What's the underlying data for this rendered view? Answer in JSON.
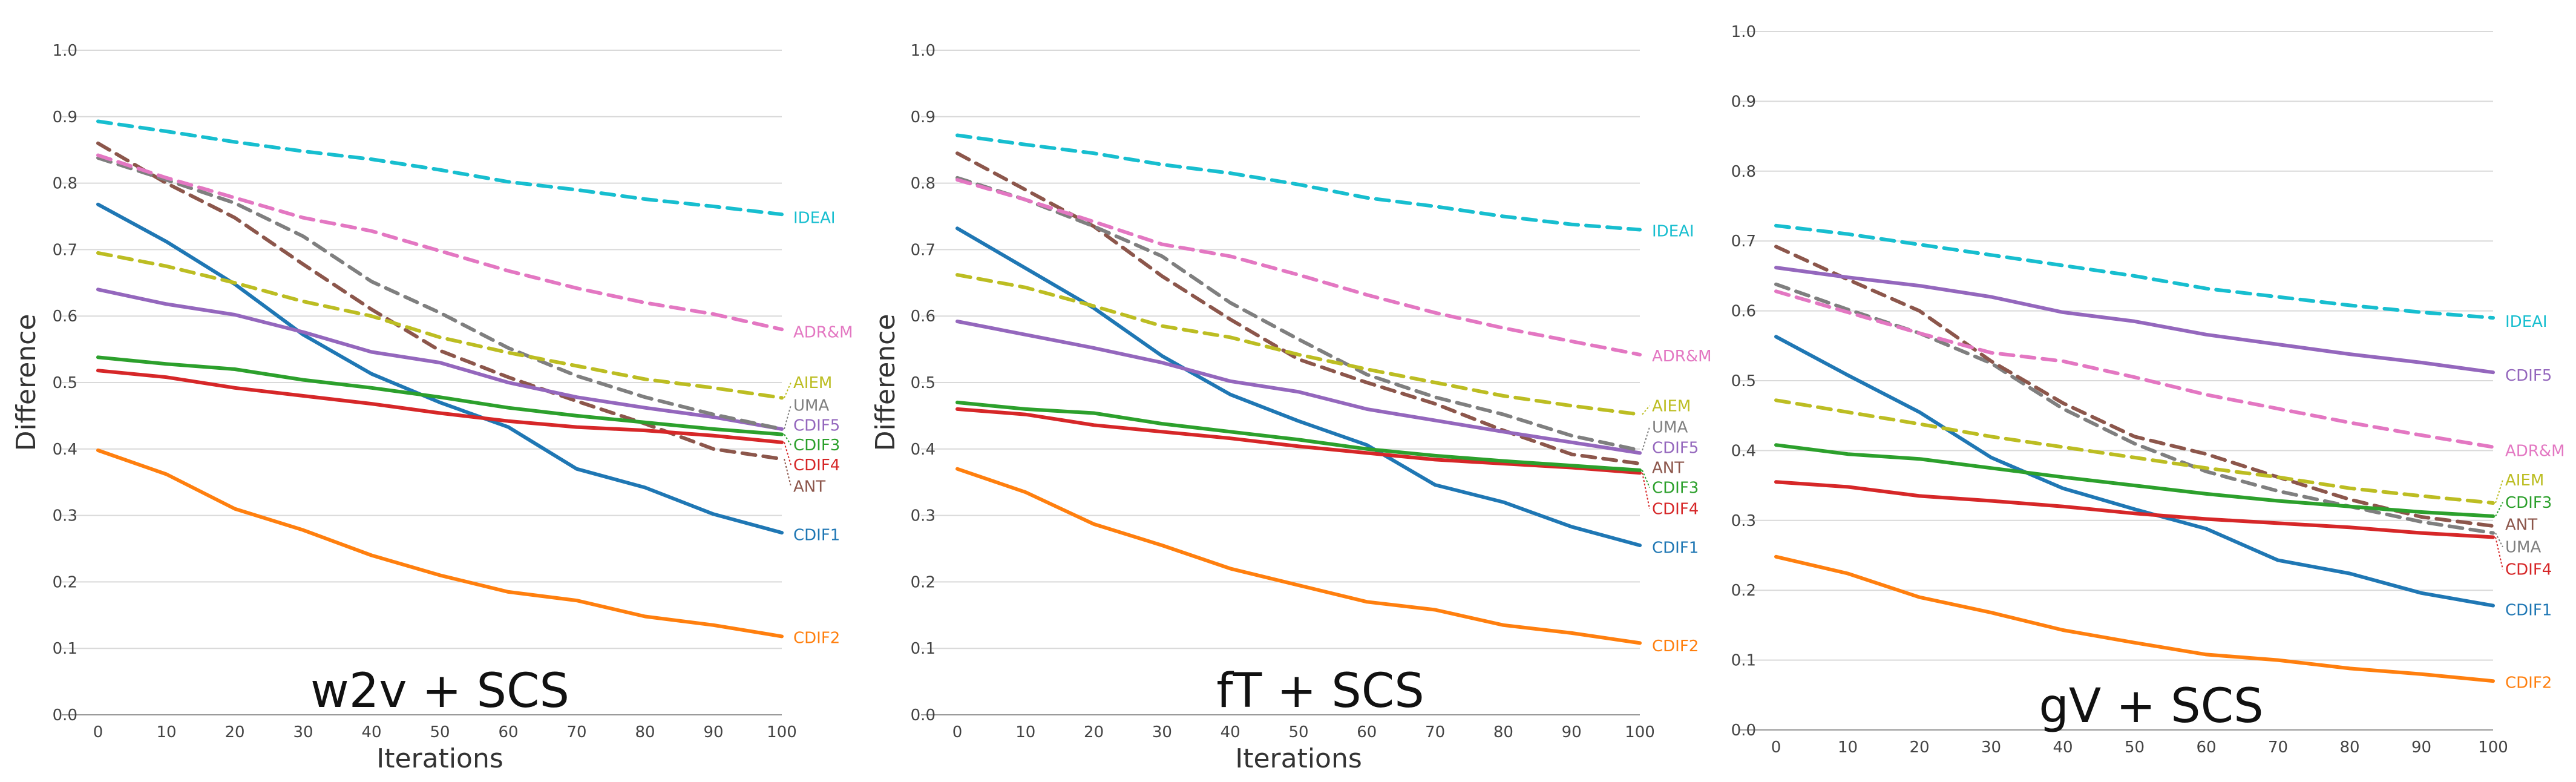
{
  "colors": {
    "IDEAI": "#17becf",
    "ADR&M": "#e377c2",
    "AIEM": "#bcbd22",
    "UMA": "#7f7f7f",
    "CDIF5": "#9467bd",
    "CDIF3": "#2ca02c",
    "CDIF4": "#d62728",
    "ANT": "#8c564b",
    "CDIF1": "#1f77b4",
    "CDIF2": "#ff7f0e"
  },
  "chart_data": [
    {
      "type": "line",
      "title": "w2v + SCS",
      "xlabel": "Iterations",
      "ylabel": "Difference",
      "ylim": [
        0,
        1
      ],
      "yticks": [
        "0.0",
        "0.1",
        "0.2",
        "0.3",
        "0.4",
        "0.5",
        "0.6",
        "0.7",
        "0.8",
        "0.9",
        "1.0"
      ],
      "x": [
        0,
        10,
        20,
        30,
        40,
        50,
        60,
        70,
        80,
        90,
        100
      ],
      "series": [
        {
          "name": "IDEAI",
          "dashed": true,
          "values": [
            0.893,
            0.878,
            0.862,
            0.848,
            0.836,
            0.82,
            0.802,
            0.79,
            0.776,
            0.765,
            0.753
          ]
        },
        {
          "name": "ADR&M",
          "dashed": true,
          "values": [
            0.842,
            0.808,
            0.778,
            0.748,
            0.728,
            0.698,
            0.668,
            0.642,
            0.62,
            0.603,
            0.58
          ]
        },
        {
          "name": "AIEM",
          "dashed": true,
          "values": [
            0.695,
            0.675,
            0.65,
            0.622,
            0.6,
            0.568,
            0.545,
            0.525,
            0.505,
            0.492,
            0.477
          ]
        },
        {
          "name": "UMA",
          "dashed": true,
          "values": [
            0.838,
            0.805,
            0.77,
            0.72,
            0.652,
            0.605,
            0.552,
            0.51,
            0.478,
            0.452,
            0.43
          ]
        },
        {
          "name": "CDIF5",
          "dashed": false,
          "values": [
            0.64,
            0.618,
            0.602,
            0.576,
            0.546,
            0.53,
            0.5,
            0.478,
            0.462,
            0.448,
            0.43
          ]
        },
        {
          "name": "CDIF3",
          "dashed": false,
          "values": [
            0.538,
            0.528,
            0.52,
            0.504,
            0.492,
            0.478,
            0.462,
            0.45,
            0.44,
            0.43,
            0.422
          ]
        },
        {
          "name": "CDIF4",
          "dashed": false,
          "values": [
            0.518,
            0.508,
            0.492,
            0.48,
            0.468,
            0.454,
            0.442,
            0.433,
            0.428,
            0.42,
            0.41
          ]
        },
        {
          "name": "ANT",
          "dashed": true,
          "values": [
            0.86,
            0.8,
            0.748,
            0.678,
            0.61,
            0.548,
            0.508,
            0.472,
            0.438,
            0.4,
            0.385
          ]
        },
        {
          "name": "CDIF1",
          "dashed": false,
          "values": [
            0.768,
            0.712,
            0.648,
            0.572,
            0.513,
            0.47,
            0.433,
            0.37,
            0.342,
            0.302,
            0.274
          ]
        },
        {
          "name": "CDIF2",
          "dashed": false,
          "values": [
            0.398,
            0.362,
            0.31,
            0.278,
            0.24,
            0.21,
            0.185,
            0.172,
            0.148,
            0.135,
            0.118
          ]
        }
      ],
      "labels": [
        {
          "name": "IDEAI",
          "text": "IDEAI",
          "y": 0.748
        },
        {
          "name": "ADR&M",
          "text": "ADR&M",
          "y": 0.576
        },
        {
          "name": "AIEM",
          "text": "AIEM",
          "y": 0.5
        },
        {
          "name": "UMA",
          "text": "UMA",
          "y": 0.466
        },
        {
          "name": "CDIF5",
          "text": "CDIF5",
          "y": 0.436
        },
        {
          "name": "CDIF3",
          "text": "CDIF3",
          "y": 0.406
        },
        {
          "name": "CDIF4",
          "text": "CDIF4",
          "y": 0.376
        },
        {
          "name": "ANT",
          "text": "ANT",
          "y": 0.344
        },
        {
          "name": "CDIF1",
          "text": "CDIF1",
          "y": 0.271
        },
        {
          "name": "CDIF2",
          "text": "CDIF2",
          "y": 0.116
        }
      ]
    },
    {
      "type": "line",
      "title": "fT + SCS",
      "xlabel": "Iterations",
      "ylabel": "Difference",
      "ylim": [
        0,
        1
      ],
      "yticks": [
        "0.0",
        "0.1",
        "0.2",
        "0.3",
        "0.4",
        "0.5",
        "0.6",
        "0.7",
        "0.8",
        "0.9",
        "1.0"
      ],
      "x": [
        0,
        10,
        20,
        30,
        40,
        50,
        60,
        70,
        80,
        90,
        100
      ],
      "series": [
        {
          "name": "IDEAI",
          "dashed": true,
          "values": [
            0.872,
            0.858,
            0.845,
            0.828,
            0.815,
            0.798,
            0.778,
            0.765,
            0.75,
            0.738,
            0.73
          ]
        },
        {
          "name": "ADR&M",
          "dashed": true,
          "values": [
            0.805,
            0.775,
            0.742,
            0.708,
            0.69,
            0.662,
            0.632,
            0.605,
            0.582,
            0.562,
            0.542
          ]
        },
        {
          "name": "AIEM",
          "dashed": true,
          "values": [
            0.662,
            0.643,
            0.615,
            0.585,
            0.568,
            0.542,
            0.52,
            0.5,
            0.48,
            0.465,
            0.452
          ]
        },
        {
          "name": "UMA",
          "dashed": true,
          "values": [
            0.808,
            0.775,
            0.735,
            0.69,
            0.62,
            0.565,
            0.512,
            0.478,
            0.452,
            0.42,
            0.398
          ]
        },
        {
          "name": "CDIF5",
          "dashed": false,
          "values": [
            0.592,
            0.572,
            0.552,
            0.53,
            0.502,
            0.486,
            0.46,
            0.443,
            0.426,
            0.41,
            0.394
          ]
        },
        {
          "name": "CDIF3",
          "dashed": false,
          "values": [
            0.47,
            0.46,
            0.454,
            0.438,
            0.426,
            0.414,
            0.4,
            0.39,
            0.382,
            0.375,
            0.368
          ]
        },
        {
          "name": "CDIF4",
          "dashed": false,
          "values": [
            0.46,
            0.452,
            0.436,
            0.426,
            0.416,
            0.404,
            0.394,
            0.384,
            0.378,
            0.372,
            0.364
          ]
        },
        {
          "name": "ANT",
          "dashed": true,
          "values": [
            0.845,
            0.79,
            0.735,
            0.66,
            0.595,
            0.535,
            0.5,
            0.468,
            0.428,
            0.392,
            0.378
          ]
        },
        {
          "name": "CDIF1",
          "dashed": false,
          "values": [
            0.732,
            0.672,
            0.612,
            0.54,
            0.482,
            0.442,
            0.406,
            0.346,
            0.32,
            0.283,
            0.255
          ]
        },
        {
          "name": "CDIF2",
          "dashed": false,
          "values": [
            0.37,
            0.335,
            0.287,
            0.255,
            0.22,
            0.195,
            0.17,
            0.158,
            0.135,
            0.123,
            0.108
          ]
        }
      ],
      "labels": [
        {
          "name": "IDEAI",
          "text": "IDEAI",
          "y": 0.728
        },
        {
          "name": "ADR&M",
          "text": "ADR&M",
          "y": 0.54
        },
        {
          "name": "AIEM",
          "text": "AIEM",
          "y": 0.465
        },
        {
          "name": "UMA",
          "text": "UMA",
          "y": 0.433
        },
        {
          "name": "CDIF5",
          "text": "CDIF5",
          "y": 0.402
        },
        {
          "name": "ANT",
          "text": "ANT",
          "y": 0.372
        },
        {
          "name": "CDIF3",
          "text": "CDIF3",
          "y": 0.342
        },
        {
          "name": "CDIF4",
          "text": "CDIF4",
          "y": 0.31
        },
        {
          "name": "CDIF1",
          "text": "CDIF1",
          "y": 0.252
        },
        {
          "name": "CDIF2",
          "text": "CDIF2",
          "y": 0.104
        }
      ]
    },
    {
      "type": "line",
      "title": "gV + SCS",
      "xlabel": "",
      "ylabel": "",
      "ylim": [
        0,
        1
      ],
      "yticks": [
        "0.0",
        "0.1",
        "0.2",
        "0.3",
        "0.4",
        "0.5",
        "0.6",
        "0.7",
        "0.8",
        "0.9",
        "1.0"
      ],
      "x": [
        0,
        10,
        20,
        30,
        40,
        50,
        60,
        70,
        80,
        90,
        100
      ],
      "series": [
        {
          "name": "IDEAI",
          "dashed": true,
          "values": [
            0.722,
            0.71,
            0.695,
            0.68,
            0.665,
            0.65,
            0.632,
            0.62,
            0.608,
            0.598,
            0.59
          ]
        },
        {
          "name": "CDIF5",
          "dashed": false,
          "values": [
            0.662,
            0.648,
            0.636,
            0.62,
            0.598,
            0.585,
            0.566,
            0.552,
            0.538,
            0.526,
            0.512
          ]
        },
        {
          "name": "ADR&M",
          "dashed": true,
          "values": [
            0.628,
            0.598,
            0.568,
            0.54,
            0.528,
            0.505,
            0.48,
            0.46,
            0.44,
            0.422,
            0.405
          ]
        },
        {
          "name": "AIEM",
          "dashed": true,
          "values": [
            0.472,
            0.455,
            0.438,
            0.42,
            0.405,
            0.39,
            0.375,
            0.362,
            0.346,
            0.335,
            0.325
          ]
        },
        {
          "name": "CDIF3",
          "dashed": false,
          "values": [
            0.408,
            0.395,
            0.388,
            0.375,
            0.362,
            0.35,
            0.338,
            0.328,
            0.32,
            0.312,
            0.306
          ]
        },
        {
          "name": "ANT",
          "dashed": true,
          "values": [
            0.692,
            0.645,
            0.6,
            0.528,
            0.468,
            0.42,
            0.395,
            0.362,
            0.33,
            0.305,
            0.292
          ]
        },
        {
          "name": "UMA",
          "dashed": true,
          "values": [
            0.638,
            0.602,
            0.568,
            0.525,
            0.46,
            0.41,
            0.37,
            0.342,
            0.32,
            0.298,
            0.282
          ]
        },
        {
          "name": "CDIF4",
          "dashed": false,
          "values": [
            0.355,
            0.348,
            0.335,
            0.328,
            0.32,
            0.31,
            0.302,
            0.296,
            0.29,
            0.282,
            0.276
          ]
        },
        {
          "name": "CDIF1",
          "dashed": false,
          "values": [
            0.563,
            0.508,
            0.455,
            0.39,
            0.346,
            0.316,
            0.288,
            0.243,
            0.224,
            0.196,
            0.178
          ]
        },
        {
          "name": "CDIF2",
          "dashed": false,
          "values": [
            0.248,
            0.224,
            0.19,
            0.168,
            0.143,
            0.125,
            0.108,
            0.1,
            0.088,
            0.08,
            0.07
          ]
        }
      ],
      "labels": [
        {
          "name": "IDEAI",
          "text": "IDEAI",
          "y": 0.585
        },
        {
          "name": "CDIF5",
          "text": "CDIF5",
          "y": 0.508
        },
        {
          "name": "ADR&M",
          "text": "ADR&M",
          "y": 0.4
        },
        {
          "name": "AIEM",
          "text": "AIEM",
          "y": 0.358
        },
        {
          "name": "CDIF3",
          "text": "CDIF3",
          "y": 0.326
        },
        {
          "name": "ANT",
          "text": "ANT",
          "y": 0.294
        },
        {
          "name": "UMA",
          "text": "UMA",
          "y": 0.262
        },
        {
          "name": "CDIF4",
          "text": "CDIF4",
          "y": 0.23
        },
        {
          "name": "CDIF1",
          "text": "CDIF1",
          "y": 0.172
        },
        {
          "name": "CDIF2",
          "text": "CDIF2",
          "y": 0.068
        }
      ]
    }
  ]
}
